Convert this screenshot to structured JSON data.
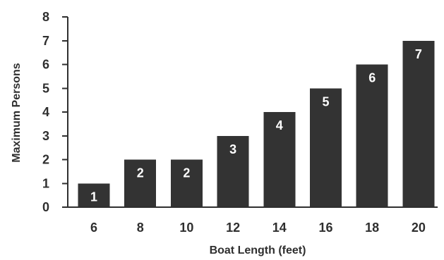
{
  "chart_data": {
    "type": "bar",
    "categories": [
      "6",
      "8",
      "10",
      "12",
      "14",
      "16",
      "18",
      "20"
    ],
    "values": [
      1,
      2,
      2,
      3,
      4,
      5,
      6,
      7
    ],
    "data_labels": [
      "1",
      "2",
      "2",
      "3",
      "4",
      "5",
      "6",
      "7"
    ],
    "xlabel": "Boat Length (feet)",
    "ylabel": "Maximum Persons",
    "ylim": [
      0,
      8
    ],
    "yticks": [
      "0",
      "1",
      "2",
      "3",
      "4",
      "5",
      "6",
      "7",
      "8"
    ],
    "grid": false,
    "bar_color": "#333333"
  }
}
